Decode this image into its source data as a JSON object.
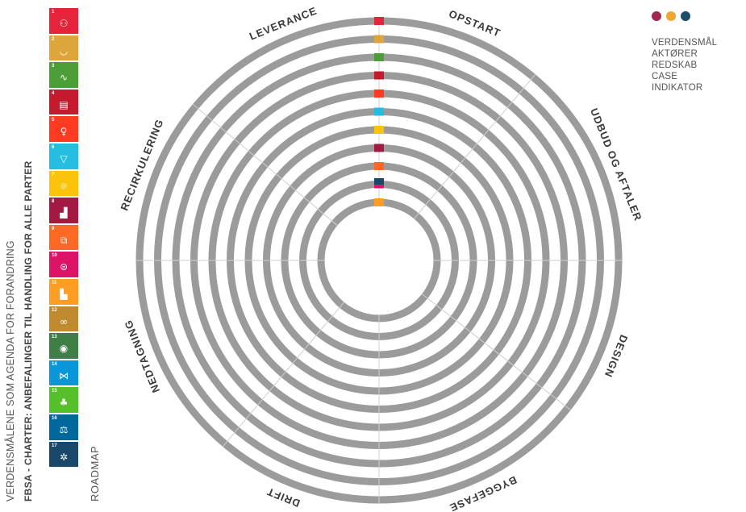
{
  "vertical_titles": {
    "line1": "VERDENSMÅLENE SOM AGENDA FOR FORANDRING",
    "line2": "FBSA - CHARTER:  ANBEFALINGER  TIL HANDLING FOR ALLE PARTER",
    "line3": "ROADMAP"
  },
  "legend": {
    "dot_colors": [
      "#a3284f",
      "#f0a637",
      "#1b4e6b"
    ],
    "items": [
      "VERDENSMÅL",
      "AKTØRER",
      "REDSKAB",
      "CASE",
      "INDIKATOR"
    ]
  },
  "phases": [
    "OPSTART",
    "UDBUD OG AFTALER",
    "DESIGN",
    "BYGGEFASE",
    "DRIFT",
    "NEDTAGNING",
    "RECIRKULERING",
    "LEVERANCE"
  ],
  "sdg_goals": [
    {
      "number": "1",
      "color": "#e5243b",
      "icon": "family-icon",
      "glyph": "⚇"
    },
    {
      "number": "2",
      "color": "#dda63a",
      "icon": "bowl-icon",
      "glyph": "◡"
    },
    {
      "number": "3",
      "color": "#4c9f38",
      "icon": "heartbeat-icon",
      "glyph": "∿"
    },
    {
      "number": "4",
      "color": "#c5192d",
      "icon": "book-icon",
      "glyph": "▤"
    },
    {
      "number": "5",
      "color": "#ff3a21",
      "icon": "gender-icon",
      "glyph": "♀"
    },
    {
      "number": "6",
      "color": "#26bde2",
      "icon": "water-drop-icon",
      "glyph": "▽"
    },
    {
      "number": "7",
      "color": "#fcc30b",
      "icon": "sun-icon",
      "glyph": "☼"
    },
    {
      "number": "8",
      "color": "#a21942",
      "icon": "growth-chart-icon",
      "glyph": "▟"
    },
    {
      "number": "9",
      "color": "#fd6925",
      "icon": "cubes-icon",
      "glyph": "⧉"
    },
    {
      "number": "10",
      "color": "#dd1367",
      "icon": "equality-icon",
      "glyph": "⊜"
    },
    {
      "number": "11",
      "color": "#fd9d24",
      "icon": "buildings-icon",
      "glyph": "▙"
    },
    {
      "number": "12",
      "color": "#bf8b2e",
      "icon": "infinity-icon",
      "glyph": "∞"
    },
    {
      "number": "13",
      "color": "#3f7e44",
      "icon": "eye-globe-icon",
      "glyph": "◉"
    },
    {
      "number": "14",
      "color": "#0a97d9",
      "icon": "fish-icon",
      "glyph": "⋈"
    },
    {
      "number": "15",
      "color": "#56c02b",
      "icon": "tree-icon",
      "glyph": "♣"
    },
    {
      "number": "16",
      "color": "#00689d",
      "icon": "dove-icon",
      "glyph": "⚖"
    },
    {
      "number": "17",
      "color": "#19486a",
      "icon": "partnership-icon",
      "glyph": "✲"
    }
  ],
  "ring_count": 11,
  "ring_color": "#9b9b9b"
}
